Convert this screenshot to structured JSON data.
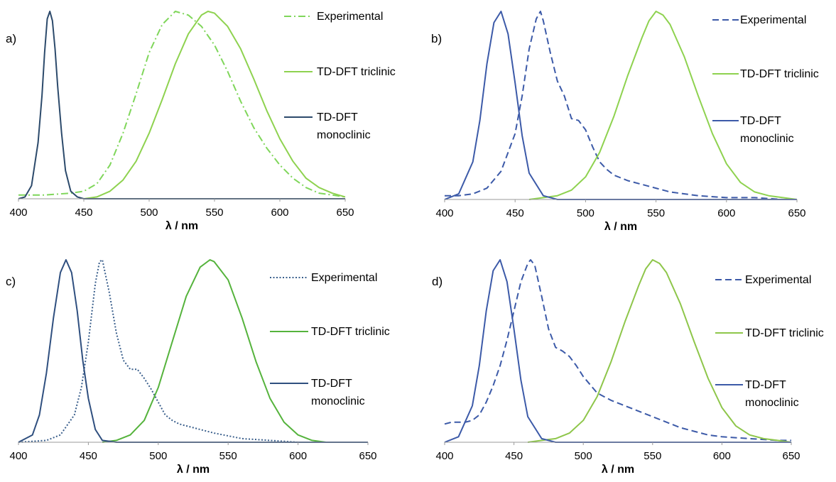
{
  "chart_data": [
    {
      "type": "line",
      "panel_label": "a)",
      "xlabel": "λ / nm",
      "xlim": [
        400,
        650
      ],
      "xticks": [
        "400",
        "450",
        "500",
        "550",
        "600",
        "650"
      ],
      "series": [
        {
          "name": "Experimental",
          "color": "#7fd65a",
          "style": "dashdot",
          "x": [
            400,
            420,
            440,
            450,
            460,
            470,
            480,
            490,
            500,
            510,
            520,
            530,
            540,
            550,
            560,
            570,
            580,
            590,
            600,
            610,
            620,
            630,
            640,
            650
          ],
          "y": [
            0.02,
            0.02,
            0.03,
            0.04,
            0.08,
            0.18,
            0.35,
            0.56,
            0.78,
            0.93,
            1.0,
            0.98,
            0.92,
            0.82,
            0.68,
            0.52,
            0.38,
            0.27,
            0.18,
            0.11,
            0.06,
            0.03,
            0.02,
            0.01
          ]
        },
        {
          "name": "TD-DFT triclinic",
          "color": "#8ed24f",
          "style": "solid",
          "x": [
            450,
            460,
            470,
            480,
            490,
            500,
            510,
            520,
            530,
            540,
            545,
            550,
            560,
            570,
            580,
            590,
            600,
            610,
            620,
            630,
            640,
            650
          ],
          "y": [
            0.0,
            0.01,
            0.04,
            0.1,
            0.2,
            0.35,
            0.53,
            0.72,
            0.88,
            0.98,
            1.0,
            0.99,
            0.92,
            0.8,
            0.64,
            0.47,
            0.32,
            0.2,
            0.11,
            0.06,
            0.03,
            0.01
          ]
        },
        {
          "name": "TD-DFT monoclinic",
          "color": "#2c4a6b",
          "style": "solid",
          "x": [
            400,
            405,
            410,
            415,
            418,
            420,
            422,
            424,
            426,
            428,
            430,
            433,
            436,
            440,
            445,
            450,
            460,
            650
          ],
          "y": [
            0.0,
            0.01,
            0.07,
            0.3,
            0.55,
            0.78,
            0.96,
            1.0,
            0.95,
            0.8,
            0.6,
            0.35,
            0.15,
            0.04,
            0.01,
            0.0,
            0.0,
            0.0
          ]
        }
      ]
    },
    {
      "type": "line",
      "panel_label": "b)",
      "xlabel": "λ / nm",
      "xlim": [
        400,
        650
      ],
      "xticks": [
        "400",
        "450",
        "500",
        "550",
        "600",
        "650"
      ],
      "series": [
        {
          "name": "Experimental",
          "color": "#3c5aa8",
          "style": "dashed",
          "x": [
            400,
            410,
            420,
            430,
            440,
            450,
            455,
            460,
            465,
            468,
            470,
            475,
            480,
            485,
            490,
            495,
            500,
            505,
            510,
            515,
            520,
            530,
            540,
            550,
            560,
            580,
            600,
            620,
            640,
            650
          ],
          "y": [
            0.02,
            0.02,
            0.03,
            0.06,
            0.15,
            0.35,
            0.55,
            0.8,
            0.96,
            1.0,
            0.95,
            0.78,
            0.63,
            0.55,
            0.43,
            0.42,
            0.37,
            0.28,
            0.2,
            0.16,
            0.13,
            0.1,
            0.08,
            0.06,
            0.04,
            0.02,
            0.01,
            0.01,
            0.0,
            0.0
          ]
        },
        {
          "name": "TD-DFT triclinic",
          "color": "#8ed24f",
          "style": "solid",
          "x": [
            460,
            470,
            480,
            490,
            500,
            510,
            520,
            530,
            540,
            545,
            550,
            555,
            560,
            570,
            580,
            590,
            600,
            610,
            620,
            630,
            640,
            650
          ],
          "y": [
            0.0,
            0.01,
            0.02,
            0.05,
            0.12,
            0.25,
            0.44,
            0.66,
            0.86,
            0.95,
            1.0,
            0.98,
            0.93,
            0.76,
            0.55,
            0.35,
            0.19,
            0.09,
            0.04,
            0.02,
            0.01,
            0.0
          ]
        },
        {
          "name": "TD-DFT monoclinic",
          "color": "#3c5aa8",
          "style": "solid",
          "x": [
            400,
            410,
            420,
            425,
            430,
            435,
            440,
            445,
            450,
            455,
            460,
            470,
            480,
            650
          ],
          "y": [
            0.0,
            0.03,
            0.2,
            0.42,
            0.72,
            0.94,
            1.0,
            0.88,
            0.62,
            0.34,
            0.14,
            0.02,
            0.0,
            0.0
          ]
        }
      ]
    },
    {
      "type": "line",
      "panel_label": "c)",
      "xlabel": "λ / nm",
      "xlim": [
        400,
        650
      ],
      "xticks": [
        "400",
        "450",
        "500",
        "550",
        "600",
        "650"
      ],
      "series": [
        {
          "name": "Experimental",
          "color": "#3a5f8c",
          "style": "dotted",
          "x": [
            400,
            420,
            430,
            440,
            445,
            450,
            455,
            458,
            460,
            465,
            470,
            475,
            480,
            485,
            490,
            495,
            500,
            505,
            510,
            515,
            520,
            530,
            540,
            560,
            580,
            600,
            620
          ],
          "y": [
            0.0,
            0.01,
            0.04,
            0.15,
            0.3,
            0.55,
            0.87,
            0.99,
            1.0,
            0.82,
            0.6,
            0.45,
            0.4,
            0.4,
            0.35,
            0.29,
            0.22,
            0.15,
            0.12,
            0.1,
            0.09,
            0.07,
            0.05,
            0.02,
            0.01,
            0.0,
            0.0
          ]
        },
        {
          "name": "TD-DFT triclinic",
          "color": "#55b33c",
          "style": "solid",
          "x": [
            460,
            470,
            480,
            490,
            500,
            510,
            520,
            530,
            537,
            540,
            550,
            560,
            570,
            580,
            590,
            600,
            610,
            620
          ],
          "y": [
            0.0,
            0.01,
            0.04,
            0.12,
            0.3,
            0.55,
            0.8,
            0.96,
            1.0,
            0.99,
            0.89,
            0.68,
            0.44,
            0.24,
            0.11,
            0.04,
            0.01,
            0.0
          ]
        },
        {
          "name": "TD-DFT monoclinic",
          "color": "#2f4f7f",
          "style": "solid",
          "x": [
            400,
            410,
            415,
            420,
            425,
            430,
            434,
            438,
            442,
            446,
            450,
            455,
            460,
            470,
            650
          ],
          "y": [
            0.0,
            0.04,
            0.15,
            0.38,
            0.68,
            0.93,
            1.0,
            0.93,
            0.72,
            0.45,
            0.24,
            0.07,
            0.01,
            0.0,
            0.0
          ]
        }
      ]
    },
    {
      "type": "line",
      "panel_label": "d)",
      "xlabel": "λ / nm",
      "xlim": [
        400,
        650
      ],
      "xticks": [
        "400",
        "450",
        "500",
        "550",
        "600",
        "650"
      ],
      "series": [
        {
          "name": "Experimental",
          "color": "#3c5aa8",
          "style": "dashed",
          "x": [
            400,
            405,
            410,
            415,
            420,
            425,
            430,
            435,
            440,
            445,
            450,
            455,
            460,
            462,
            465,
            470,
            475,
            480,
            485,
            490,
            495,
            500,
            510,
            520,
            530,
            540,
            550,
            560,
            570,
            580,
            590,
            600,
            620,
            640,
            650
          ],
          "y": [
            0.1,
            0.11,
            0.11,
            0.11,
            0.12,
            0.15,
            0.22,
            0.31,
            0.42,
            0.56,
            0.72,
            0.88,
            0.98,
            1.0,
            0.97,
            0.8,
            0.62,
            0.52,
            0.5,
            0.47,
            0.42,
            0.36,
            0.27,
            0.23,
            0.2,
            0.17,
            0.14,
            0.11,
            0.08,
            0.06,
            0.04,
            0.03,
            0.02,
            0.01,
            0.01
          ]
        },
        {
          "name": "TD-DFT triclinic",
          "color": "#8ec64a",
          "style": "solid",
          "x": [
            460,
            470,
            480,
            490,
            500,
            510,
            520,
            530,
            540,
            545,
            550,
            555,
            560,
            570,
            580,
            590,
            600,
            610,
            620,
            630,
            640,
            650
          ],
          "y": [
            0.0,
            0.01,
            0.02,
            0.05,
            0.12,
            0.25,
            0.44,
            0.66,
            0.86,
            0.95,
            1.0,
            0.98,
            0.93,
            0.76,
            0.55,
            0.35,
            0.19,
            0.09,
            0.04,
            0.02,
            0.01,
            0.0
          ]
        },
        {
          "name": "TD-DFT monoclinic",
          "color": "#3c5aa8",
          "style": "solid",
          "x": [
            400,
            410,
            420,
            425,
            430,
            435,
            440,
            445,
            450,
            455,
            460,
            470,
            480,
            650
          ],
          "y": [
            0.0,
            0.03,
            0.2,
            0.42,
            0.72,
            0.94,
            1.0,
            0.88,
            0.62,
            0.34,
            0.14,
            0.02,
            0.0,
            0.0
          ]
        }
      ]
    }
  ]
}
